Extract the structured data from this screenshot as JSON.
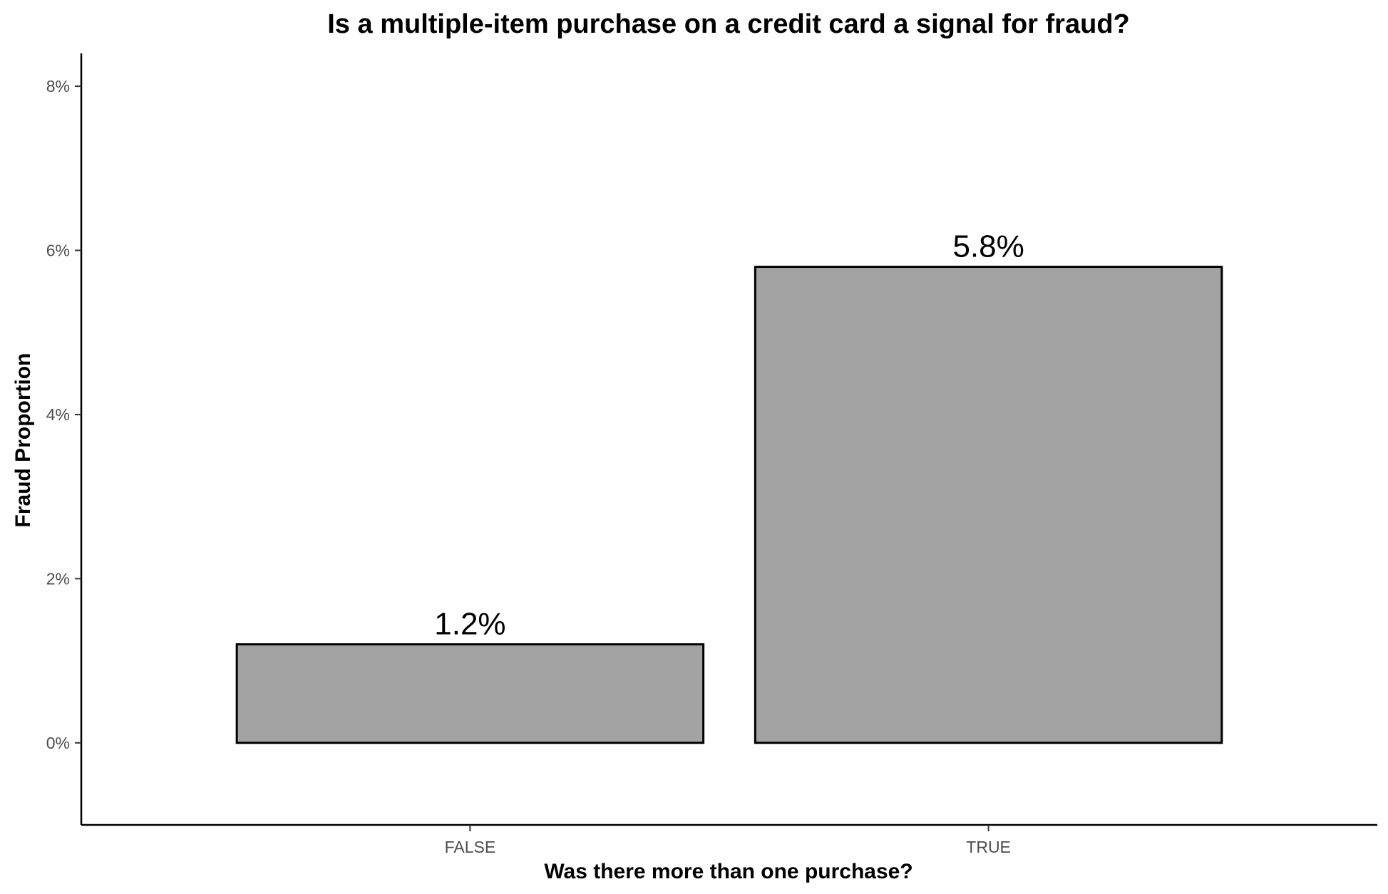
{
  "chart_data": {
    "type": "bar",
    "title": "Is a multiple-item purchase on a credit card a signal for fraud?",
    "xlabel": "Was there more than one purchase?",
    "ylabel": "Fraud Proportion",
    "categories": [
      "FALSE",
      "TRUE"
    ],
    "values": [
      1.2,
      5.8
    ],
    "data_labels": [
      "1.2%",
      "5.8%"
    ],
    "y_ticks": [
      0,
      2,
      4,
      6,
      8
    ],
    "y_tick_labels": [
      "0%",
      "2%",
      "4%",
      "6%",
      "8%"
    ],
    "ylim": [
      -1,
      8.4
    ],
    "grid": false,
    "legend": "none",
    "bar_color": "#a3a3a3",
    "bar_outline_color": "#000000"
  }
}
